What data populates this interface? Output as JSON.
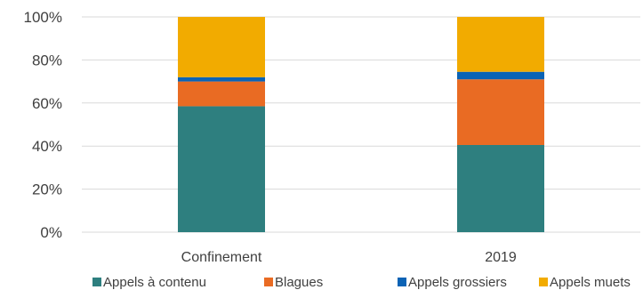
{
  "chart_data": {
    "type": "bar",
    "stacked": true,
    "percent": true,
    "categories": [
      "Confinement",
      "2019"
    ],
    "series": [
      {
        "name": "Appels à contenu",
        "values": [
          58.5,
          40.5
        ],
        "color": "#2e7f7f"
      },
      {
        "name": "Blagues",
        "values": [
          11.5,
          30.5
        ],
        "color": "#e96b23"
      },
      {
        "name": "Appels grossiers",
        "values": [
          2,
          3.5
        ],
        "color": "#0b63b5"
      },
      {
        "name": "Appels muets",
        "values": [
          28,
          25.5
        ],
        "color": "#f2ab00"
      }
    ],
    "yticks": [
      "0%",
      "20%",
      "40%",
      "60%",
      "80%",
      "100%"
    ],
    "ylim": [
      0,
      100
    ],
    "grid": true,
    "legend": "bottom"
  }
}
